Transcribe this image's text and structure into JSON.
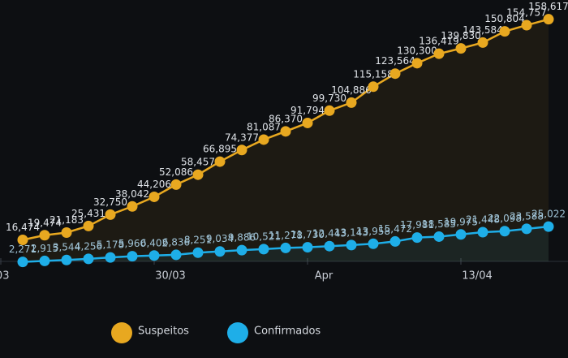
{
  "chart_data": {
    "type": "line",
    "categories": [
      "/03",
      null,
      null,
      null,
      null,
      null,
      null,
      "30/03",
      null,
      null,
      null,
      null,
      null,
      null,
      "Apr",
      null,
      null,
      null,
      null,
      null,
      null,
      "13/04",
      null,
      null,
      null,
      null
    ],
    "ylim": [
      0,
      171000
    ],
    "legend": "bottom",
    "series": [
      {
        "name": "Suspeitos",
        "color": "#e8a820",
        "values": [
          null,
          16474,
          19474,
          21183,
          25431,
          32750,
          38042,
          44206,
          52086,
          58457,
          66895,
          74377,
          81087,
          86370,
          91794,
          99730,
          104886,
          115158,
          123564,
          130300,
          136419,
          139830,
          143584,
          150804,
          154757,
          158617
        ],
        "value_labels": [
          null,
          "16,474",
          "19,474",
          "21,183",
          "25,431",
          "32,750",
          "38,042",
          "44,206",
          "52,086",
          "58,457",
          "66,895",
          "74,377",
          "81,087",
          "86,370",
          "91,794",
          "99,730",
          "104,886",
          "115,158",
          "123,564",
          "130,300",
          "136,419",
          "139,830",
          "143,584",
          "150,804",
          "154,757",
          "158,617"
        ]
      },
      {
        "name": "Confirmados",
        "color": "#1eaee8",
        "values": [
          null,
          2271,
          2915,
          3544,
          4256,
          5178,
          5960,
          6402,
          6836,
          8251,
          9034,
          9886,
          10521,
          11278,
          11730,
          12443,
          13143,
          13958,
          15472,
          17981,
          18585,
          19975,
          21448,
          22098,
          23588,
          25022
        ],
        "value_labels": [
          null,
          "2,271",
          "2,915",
          "3,544",
          "4,256",
          "5,178",
          "5,960",
          "6,402",
          "6,836",
          "8,251",
          "9,034",
          "9,886",
          "10,521",
          "11,278",
          "11,730",
          "12,443",
          "13,143",
          "13,958",
          "15,472",
          "17,981",
          "18,585",
          "19,975",
          "21,448",
          "22,098",
          "23,588",
          "25,022"
        ]
      }
    ]
  }
}
